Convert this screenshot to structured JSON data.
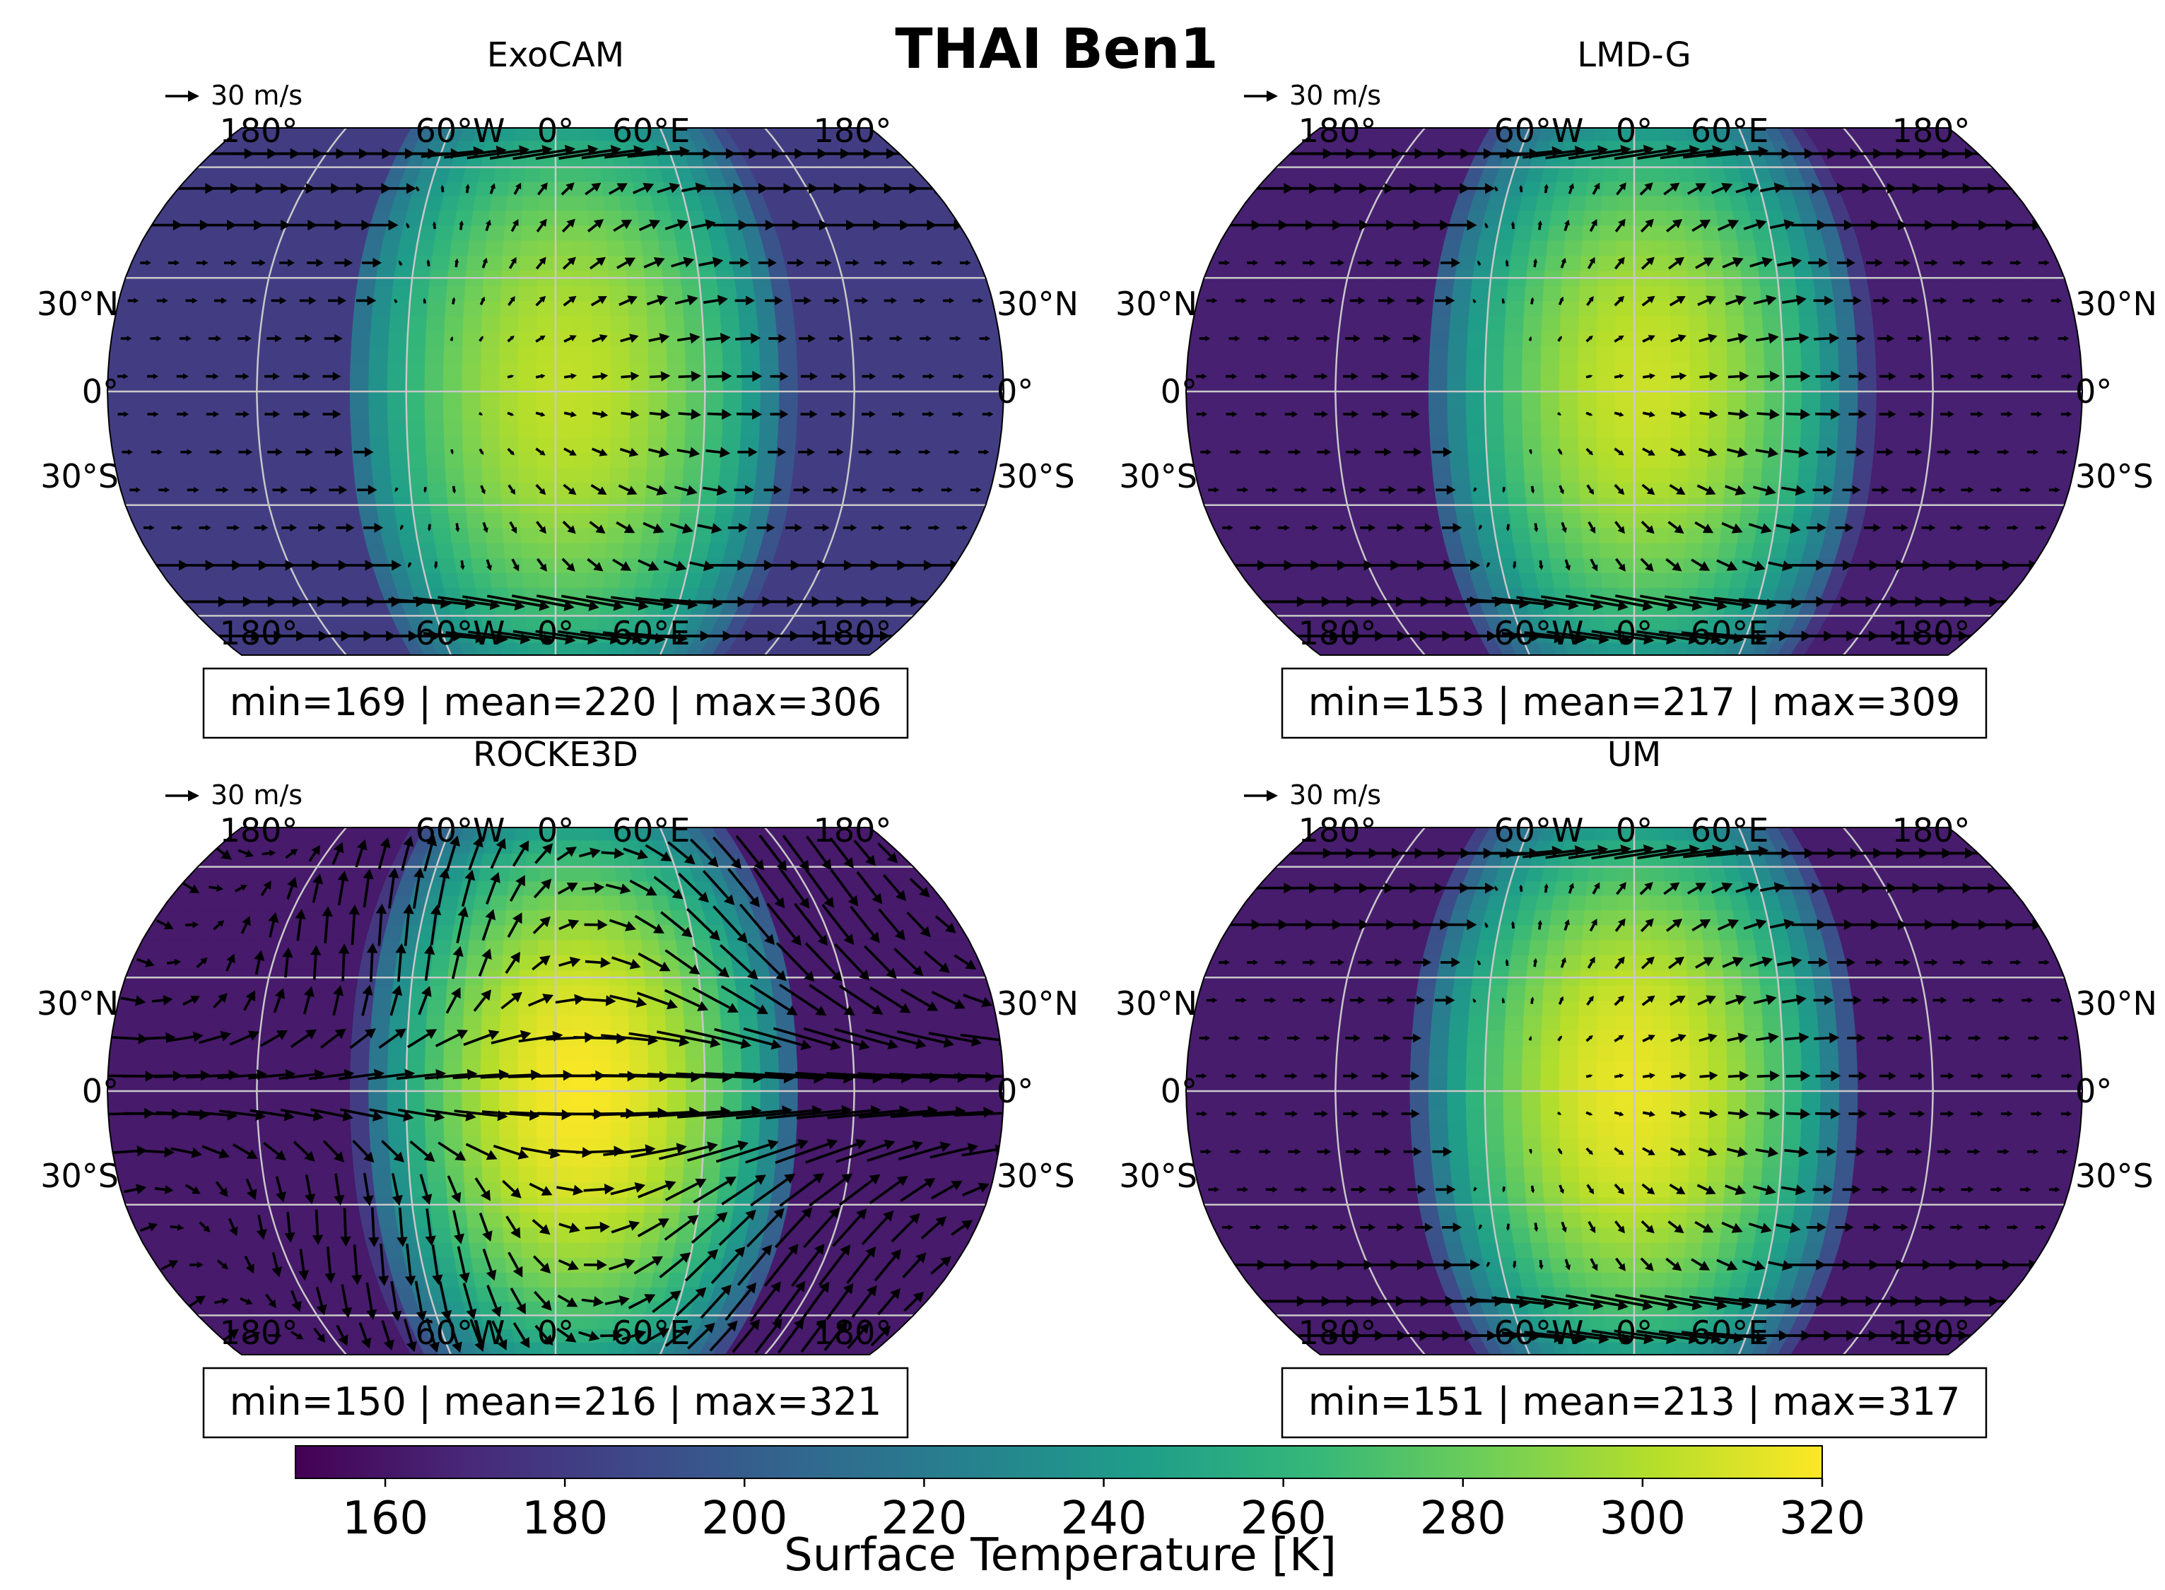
{
  "figure": {
    "title": "THAI Ben1"
  },
  "colors": {
    "viridis": [
      "#440154",
      "#482878",
      "#3e4989",
      "#31688e",
      "#26828e",
      "#1f9e89",
      "#35b779",
      "#6ece58",
      "#b5de2b",
      "#fde725"
    ],
    "graticule": "#c8c8c8",
    "arrow": "#000000",
    "background": "#ffffff"
  },
  "colorbar": {
    "label": "Surface Temperature [K]",
    "range": [
      150,
      320
    ],
    "ticks": [
      "160",
      "180",
      "200",
      "220",
      "240",
      "260",
      "280",
      "300",
      "320"
    ]
  },
  "map_labels": {
    "lon_top": [
      "180°",
      "60°W",
      "0°",
      "60°E",
      "180°"
    ],
    "lat_left": [
      "30°N",
      "0°",
      "30°S"
    ],
    "lat_right": [
      "30°N",
      "0°",
      "30°S"
    ],
    "quiver_key": "30 m/s"
  },
  "chart_data": [
    {
      "type": "heatmap",
      "title": "ExoCAM",
      "units": "K",
      "min": 169,
      "mean": 220,
      "max": 306,
      "stats_text": "min=169 | mean=220 | max=306",
      "quiver_key_speed_ms": 30
    },
    {
      "type": "heatmap",
      "title": "LMD-G",
      "units": "K",
      "min": 153,
      "mean": 217,
      "max": 309,
      "stats_text": "min=153 | mean=217 | max=309",
      "quiver_key_speed_ms": 30
    },
    {
      "type": "heatmap",
      "title": "ROCKE3D",
      "units": "K",
      "min": 150,
      "mean": 216,
      "max": 321,
      "stats_text": "min=150 | mean=216 | max=321",
      "quiver_key_speed_ms": 30
    },
    {
      "type": "heatmap",
      "title": "UM",
      "units": "K",
      "min": 151,
      "mean": 213,
      "max": 317,
      "stats_text": "min=151 | mean=213 | max=317",
      "quiver_key_speed_ms": 30
    }
  ]
}
